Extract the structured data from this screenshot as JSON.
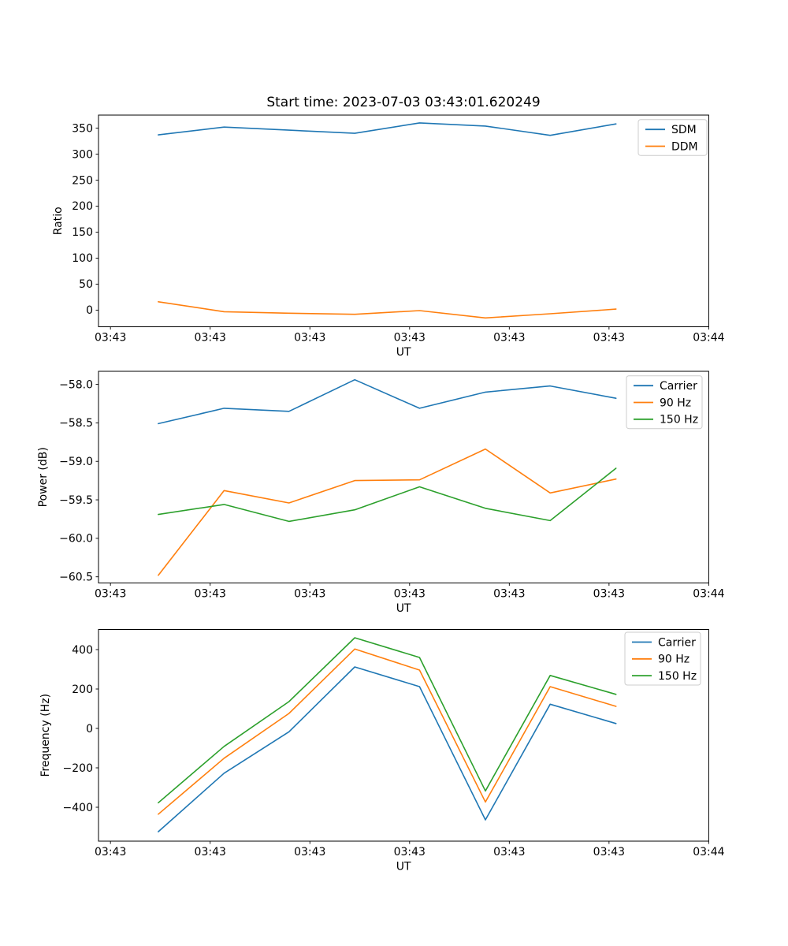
{
  "figure": {
    "background": "#ffffff",
    "text_color": "#000000",
    "legend_border_color": "#cccccc"
  },
  "chart_data": [
    {
      "type": "line",
      "title": "Start time: 2023-07-03 03:43:01.620249",
      "xlabel": "UT",
      "ylabel": "Ratio",
      "grid": false,
      "legend_position": "upper right",
      "xlim_s": [
        -1.2,
        60
      ],
      "xticks_s": [
        0,
        10,
        20,
        30,
        40,
        50,
        60
      ],
      "xticklabels": [
        "03:43",
        "03:43",
        "03:43",
        "03:43",
        "03:43",
        "03:43",
        "03:44"
      ],
      "x_s": [
        4.8,
        11.4,
        17.9,
        24.5,
        31.0,
        37.6,
        44.1,
        50.7
      ],
      "ylim": [
        -32,
        375
      ],
      "yticks": [
        0,
        50,
        100,
        150,
        200,
        250,
        300,
        350
      ],
      "yticklabels": [
        "0",
        "50",
        "100",
        "150",
        "200",
        "250",
        "300",
        "350"
      ],
      "series": [
        {
          "name": "SDM",
          "color": "#1f77b4",
          "values": [
            337,
            352,
            346,
            340,
            360,
            354,
            336,
            358
          ]
        },
        {
          "name": "DDM",
          "color": "#ff7f0e",
          "values": [
            16,
            -3,
            -6,
            -8,
            -1,
            -15,
            -7,
            2
          ]
        }
      ]
    },
    {
      "type": "line",
      "title": "",
      "xlabel": "UT",
      "ylabel": "Power (dB)",
      "grid": false,
      "legend_position": "upper right",
      "xlim_s": [
        -1.2,
        60
      ],
      "xticks_s": [
        0,
        10,
        20,
        30,
        40,
        50,
        60
      ],
      "xticklabels": [
        "03:43",
        "03:43",
        "03:43",
        "03:43",
        "03:43",
        "03:43",
        "03:44"
      ],
      "x_s": [
        4.8,
        11.4,
        17.9,
        24.5,
        31.0,
        37.6,
        44.1,
        50.7
      ],
      "ylim": [
        -60.58,
        -57.83
      ],
      "yticks": [
        -58.0,
        -58.5,
        -59.0,
        -59.5,
        -60.0,
        -60.5
      ],
      "yticklabels": [
        "−58.0",
        "−58.5",
        "−59.0",
        "−59.5",
        "−60.0",
        "−60.5"
      ],
      "series": [
        {
          "name": "Carrier",
          "color": "#1f77b4",
          "values": [
            -58.51,
            -58.31,
            -58.35,
            -57.94,
            -58.31,
            -58.1,
            -58.02,
            -58.18
          ]
        },
        {
          "name": "90 Hz",
          "color": "#ff7f0e",
          "values": [
            -60.48,
            -59.38,
            -59.54,
            -59.25,
            -59.24,
            -58.84,
            -59.41,
            -59.23
          ]
        },
        {
          "name": "150 Hz",
          "color": "#2ca02c",
          "values": [
            -59.69,
            -59.56,
            -59.78,
            -59.63,
            -59.33,
            -59.61,
            -59.77,
            -59.09
          ]
        }
      ]
    },
    {
      "type": "line",
      "title": "",
      "xlabel": "UT",
      "ylabel": "Frequency (Hz)",
      "grid": false,
      "legend_position": "upper right",
      "xlim_s": [
        -1.2,
        60
      ],
      "xticks_s": [
        0,
        10,
        20,
        30,
        40,
        50,
        60
      ],
      "xticklabels": [
        "03:43",
        "03:43",
        "03:43",
        "03:43",
        "03:43",
        "03:43",
        "03:44"
      ],
      "x_s": [
        4.8,
        11.4,
        17.9,
        24.5,
        31.0,
        37.6,
        44.1,
        50.7
      ],
      "ylim": [
        -572,
        502
      ],
      "yticks": [
        400,
        200,
        0,
        -200,
        -400
      ],
      "yticklabels": [
        "400",
        "200",
        "0",
        "−200",
        "−400"
      ],
      "series": [
        {
          "name": "Carrier",
          "color": "#1f77b4",
          "values": [
            -524,
            -227,
            -17,
            312,
            212,
            -464,
            123,
            25
          ]
        },
        {
          "name": "90 Hz",
          "color": "#ff7f0e",
          "values": [
            -435,
            -151,
            76,
            403,
            296,
            -373,
            212,
            112
          ]
        },
        {
          "name": "150 Hz",
          "color": "#2ca02c",
          "values": [
            -377,
            -91,
            136,
            460,
            360,
            -317,
            269,
            173
          ]
        }
      ]
    }
  ]
}
